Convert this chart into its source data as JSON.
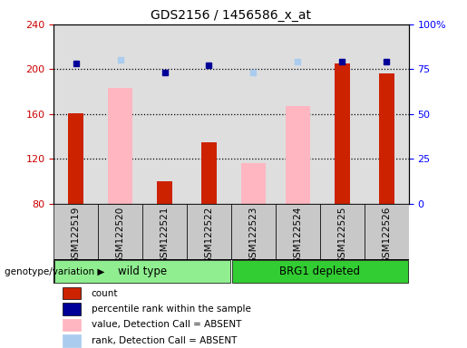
{
  "title": "GDS2156 / 1456586_x_at",
  "samples": [
    "GSM122519",
    "GSM122520",
    "GSM122521",
    "GSM122522",
    "GSM122523",
    "GSM122524",
    "GSM122525",
    "GSM122526"
  ],
  "count_values": [
    161,
    null,
    100,
    135,
    null,
    null,
    205,
    196
  ],
  "absent_value": [
    null,
    183,
    null,
    null,
    116,
    167,
    null,
    null
  ],
  "percentile_rank": [
    78,
    null,
    73,
    77,
    null,
    null,
    79,
    79
  ],
  "absent_rank": [
    null,
    80,
    null,
    null,
    73,
    79,
    null,
    null
  ],
  "ylim_left": [
    80,
    240
  ],
  "ylim_right": [
    0,
    100
  ],
  "yticks_left": [
    80,
    120,
    160,
    200,
    240
  ],
  "yticks_right": [
    0,
    25,
    50,
    75,
    100
  ],
  "groups": [
    {
      "label": "wild type",
      "start": 0,
      "end": 3,
      "color": "#90EE90"
    },
    {
      "label": "BRG1 depleted",
      "start": 4,
      "end": 7,
      "color": "#32CD32"
    }
  ],
  "legend_items": [
    {
      "label": "count",
      "color": "#CC2200"
    },
    {
      "label": "percentile rank within the sample",
      "color": "#000099"
    },
    {
      "label": "value, Detection Call = ABSENT",
      "color": "#FFB6C1"
    },
    {
      "label": "rank, Detection Call = ABSENT",
      "color": "#AACCEE"
    }
  ],
  "group_label": "genotype/variation",
  "count_color": "#CC2200",
  "absent_value_color": "#FFB6C1",
  "percentile_color": "#000099",
  "absent_rank_color": "#AACCEE",
  "tick_label_color_left": "#CC0000",
  "tick_label_color_right": "#0000FF",
  "grid_lines": [
    120,
    160,
    200
  ],
  "dotted_line_200": 200
}
